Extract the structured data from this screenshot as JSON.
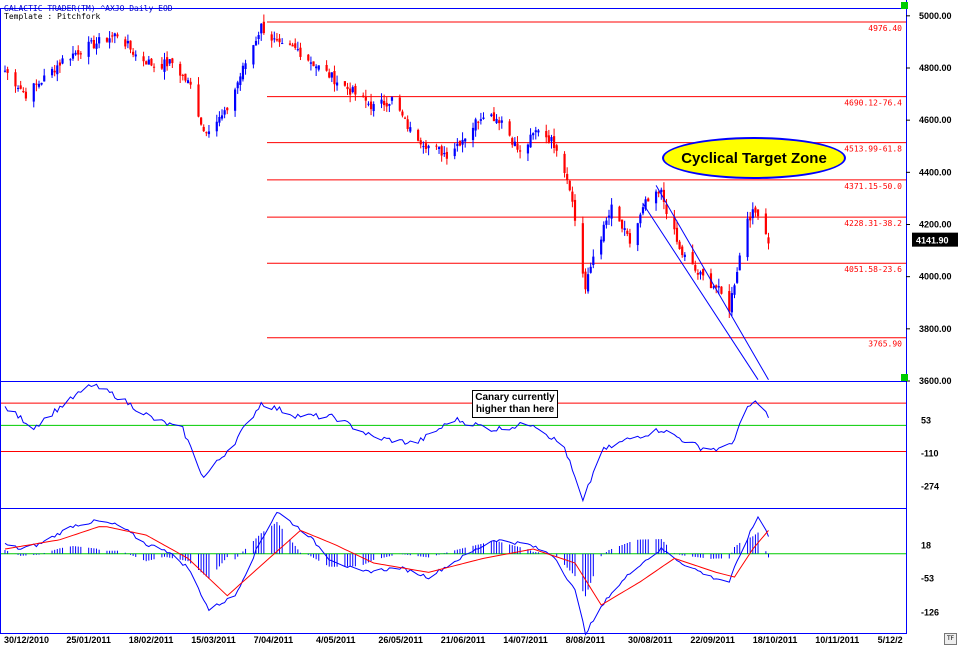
{
  "header": {
    "line1": "GALACTIC TRADER(TM)    ^AXJO Daily EOD",
    "line2": "Template : Pitchfork"
  },
  "callout": {
    "line1": "Canary currently",
    "line2": "higher than here"
  },
  "target_zone": {
    "label": "Cyclical Target Zone"
  },
  "colors": {
    "up": "#0000ff",
    "down": "#ff0000",
    "fib": "#ff0000",
    "green": "#00cc00",
    "osc": "#0000ff",
    "signal": "#ff0000",
    "bg": "#ffffff"
  },
  "icons": {
    "scroll_button": "green-square",
    "timeframe_button": "tf-box"
  },
  "chart_data": [
    {
      "type": "candlestick",
      "title": "GALACTIC TRADER(TM) ^AXJO Daily EOD",
      "y_ticks": [
        3600,
        3800,
        4000,
        4200,
        4400,
        4600,
        4800,
        5000
      ],
      "y_tick_labels": [
        "3600.00",
        "3800.00",
        "4000.00",
        "4200.00",
        "4400.00",
        "4600.00",
        "4800.00",
        "5000.00"
      ],
      "ylim": [
        3600,
        5030
      ],
      "last_price": 4141.9,
      "last_price_label": "4141.90",
      "fib_levels": [
        {
          "value": 4976.4,
          "label": "4976.40"
        },
        {
          "value": 4690.12,
          "label": "4690.12-76.4"
        },
        {
          "value": 4513.99,
          "label": "4513.99-61.8"
        },
        {
          "value": 4371.15,
          "label": "4371.15-50.0"
        },
        {
          "value": 4228.31,
          "label": "4228.31-38.2"
        },
        {
          "value": 4051.58,
          "label": "4051.58-23.6"
        },
        {
          "value": 3765.9,
          "label": "3765.90"
        }
      ],
      "anchors": [
        [
          "2010-12-30",
          4790
        ],
        [
          "2011-01-07",
          4700
        ],
        [
          "2011-01-14",
          4760
        ],
        [
          "2011-01-21",
          4830
        ],
        [
          "2011-01-28",
          4870
        ],
        [
          "2011-02-04",
          4900
        ],
        [
          "2011-02-11",
          4930
        ],
        [
          "2011-02-18",
          4850
        ],
        [
          "2011-02-25",
          4810
        ],
        [
          "2011-03-04",
          4820
        ],
        [
          "2011-03-11",
          4730
        ],
        [
          "2011-03-16",
          4560
        ],
        [
          "2011-03-24",
          4620
        ],
        [
          "2011-04-01",
          4820
        ],
        [
          "2011-04-07",
          4960
        ],
        [
          "2011-04-14",
          4880
        ],
        [
          "2011-04-21",
          4870
        ],
        [
          "2011-04-28",
          4810
        ],
        [
          "2011-05-06",
          4750
        ],
        [
          "2011-05-13",
          4700
        ],
        [
          "2011-05-20",
          4650
        ],
        [
          "2011-05-27",
          4680
        ],
        [
          "2011-06-03",
          4560
        ],
        [
          "2011-06-10",
          4500
        ],
        [
          "2011-06-17",
          4470
        ],
        [
          "2011-06-24",
          4540
        ],
        [
          "2011-07-01",
          4630
        ],
        [
          "2011-07-08",
          4600
        ],
        [
          "2011-07-15",
          4470
        ],
        [
          "2011-07-22",
          4570
        ],
        [
          "2011-07-29",
          4500
        ],
        [
          "2011-08-03",
          4350
        ],
        [
          "2011-08-09",
          3950
        ],
        [
          "2011-08-12",
          4080
        ],
        [
          "2011-08-19",
          4260
        ],
        [
          "2011-08-26",
          4130
        ],
        [
          "2011-09-01",
          4280
        ],
        [
          "2011-09-07",
          4320
        ],
        [
          "2011-09-14",
          4100
        ],
        [
          "2011-09-21",
          4010
        ],
        [
          "2011-09-28",
          3960
        ],
        [
          "2011-10-03",
          3880
        ],
        [
          "2011-10-07",
          4080
        ],
        [
          "2011-10-10",
          4230
        ],
        [
          "2011-10-14",
          4250
        ],
        [
          "2011-10-18",
          4140
        ]
      ],
      "pitchfork_lines": [
        {
          "from": [
            "2011-09-05",
            4350
          ],
          "to": [
            "2011-10-18",
            3605
          ]
        },
        {
          "from": [
            "2011-08-31",
            4280
          ],
          "to": [
            "2011-10-14",
            3605
          ]
        }
      ],
      "x_tick_labels": [
        "30/12/2010",
        "25/01/2011",
        "18/02/2011",
        "15/03/2011",
        "7/04/2011",
        "4/05/2011",
        "26/05/2011",
        "21/06/2011",
        "14/07/2011",
        "8/08/2011",
        "30/08/2011",
        "22/09/2011",
        "18/10/2011",
        "10/11/2011",
        "5/12/2"
      ],
      "xlim": [
        "2010-12-30",
        "2011-12-05"
      ]
    },
    {
      "type": "line",
      "name": "oscillator",
      "y_ticks": [
        53,
        -110,
        -274
      ],
      "y_tick_labels": [
        "53",
        "-110",
        "-274"
      ],
      "ylim": [
        -380,
        250
      ],
      "levels": [
        {
          "value": 140,
          "color": "#ff0000"
        },
        {
          "value": 30,
          "color": "#00cc00"
        },
        {
          "value": -100,
          "color": "#ff0000"
        }
      ],
      "anchors": [
        [
          "2010-12-30",
          120
        ],
        [
          "2011-01-10",
          20
        ],
        [
          "2011-01-20",
          120
        ],
        [
          "2011-02-01",
          230
        ],
        [
          "2011-02-10",
          180
        ],
        [
          "2011-02-25",
          60
        ],
        [
          "2011-03-08",
          10
        ],
        [
          "2011-03-16",
          -230
        ],
        [
          "2011-03-28",
          -50
        ],
        [
          "2011-04-07",
          140
        ],
        [
          "2011-04-20",
          80
        ],
        [
          "2011-05-05",
          70
        ],
        [
          "2011-05-20",
          -30
        ],
        [
          "2011-06-05",
          -60
        ],
        [
          "2011-06-20",
          60
        ],
        [
          "2011-07-05",
          10
        ],
        [
          "2011-07-20",
          40
        ],
        [
          "2011-08-01",
          -80
        ],
        [
          "2011-08-08",
          -350
        ],
        [
          "2011-08-15",
          -100
        ],
        [
          "2011-08-25",
          -40
        ],
        [
          "2011-09-07",
          10
        ],
        [
          "2011-09-15",
          -40
        ],
        [
          "2011-09-22",
          -80
        ],
        [
          "2011-09-30",
          -90
        ],
        [
          "2011-10-05",
          -40
        ],
        [
          "2011-10-10",
          120
        ],
        [
          "2011-10-14",
          150
        ],
        [
          "2011-10-18",
          70
        ]
      ]
    },
    {
      "type": "bar",
      "name": "histogram",
      "y_ticks": [
        18,
        -53,
        -126
      ],
      "y_tick_labels": [
        "18",
        "-53",
        "-126"
      ],
      "ylim": [
        -170,
        98
      ],
      "zero": 0,
      "osc_anchors": [
        [
          "2010-12-30",
          20
        ],
        [
          "2011-01-05",
          10
        ],
        [
          "2011-01-12",
          20
        ],
        [
          "2011-01-25",
          60
        ],
        [
          "2011-02-03",
          70
        ],
        [
          "2011-02-12",
          60
        ],
        [
          "2011-02-22",
          20
        ],
        [
          "2011-03-01",
          10
        ],
        [
          "2011-03-10",
          -30
        ],
        [
          "2011-03-18",
          -120
        ],
        [
          "2011-03-28",
          -90
        ],
        [
          "2011-04-07",
          30
        ],
        [
          "2011-04-13",
          90
        ],
        [
          "2011-04-25",
          40
        ],
        [
          "2011-05-03",
          -10
        ],
        [
          "2011-05-15",
          -40
        ],
        [
          "2011-05-30",
          -30
        ],
        [
          "2011-06-10",
          -50
        ],
        [
          "2011-06-22",
          -10
        ],
        [
          "2011-07-05",
          30
        ],
        [
          "2011-07-18",
          20
        ],
        [
          "2011-07-28",
          -5
        ],
        [
          "2011-08-05",
          -80
        ],
        [
          "2011-08-09",
          -170
        ],
        [
          "2011-08-18",
          -90
        ],
        [
          "2011-08-28",
          -30
        ],
        [
          "2011-09-07",
          10
        ],
        [
          "2011-09-15",
          -20
        ],
        [
          "2011-09-26",
          -50
        ],
        [
          "2011-10-03",
          -60
        ],
        [
          "2011-10-08",
          10
        ],
        [
          "2011-10-14",
          80
        ],
        [
          "2011-10-18",
          40
        ]
      ],
      "signal_anchors": [
        [
          "2010-12-30",
          10
        ],
        [
          "2011-01-20",
          30
        ],
        [
          "2011-02-05",
          60
        ],
        [
          "2011-02-22",
          40
        ],
        [
          "2011-03-10",
          -10
        ],
        [
          "2011-03-25",
          -90
        ],
        [
          "2011-04-08",
          -20
        ],
        [
          "2011-04-22",
          50
        ],
        [
          "2011-05-05",
          20
        ],
        [
          "2011-05-20",
          -20
        ],
        [
          "2011-06-10",
          -40
        ],
        [
          "2011-07-01",
          -10
        ],
        [
          "2011-07-20",
          10
        ],
        [
          "2011-08-05",
          -20
        ],
        [
          "2011-08-15",
          -110
        ],
        [
          "2011-08-30",
          -60
        ],
        [
          "2011-09-12",
          -10
        ],
        [
          "2011-09-28",
          -40
        ],
        [
          "2011-10-05",
          -50
        ],
        [
          "2011-10-12",
          10
        ],
        [
          "2011-10-18",
          50
        ]
      ]
    }
  ]
}
